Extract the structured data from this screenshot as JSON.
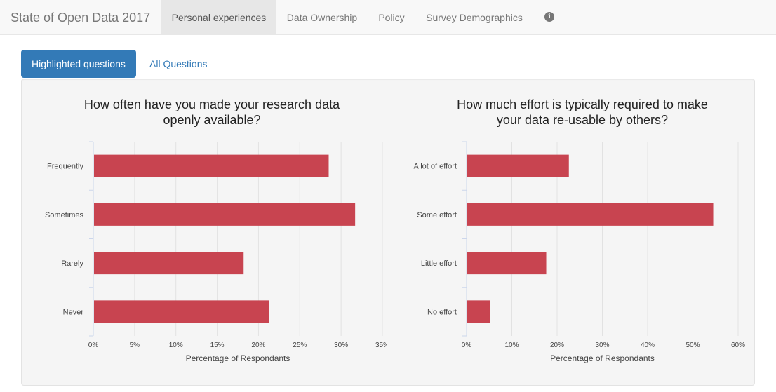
{
  "nav": {
    "brand": "State of Open Data 2017",
    "items": [
      {
        "label": "Personal experiences",
        "active": true
      },
      {
        "label": "Data Ownership",
        "active": false
      },
      {
        "label": "Policy",
        "active": false
      },
      {
        "label": "Survey Demographics",
        "active": false
      }
    ],
    "info_icon": "info-circle-icon"
  },
  "pills": {
    "highlighted": "Highlighted questions",
    "all": "All Questions"
  },
  "colors": {
    "bar": "#c84450",
    "grid": "#e2e2e2",
    "accent": "#337ab7"
  },
  "chart_data": [
    {
      "type": "bar",
      "orientation": "horizontal",
      "title": [
        "How often have you made your research data",
        "openly available?"
      ],
      "categories": [
        "Frequently",
        "Sometimes",
        "Rarely",
        "Never"
      ],
      "values": [
        28.5,
        31.7,
        18.2,
        21.3
      ],
      "xlabel": "Percentage of Respondants",
      "xlim": [
        0,
        35
      ],
      "ticks": [
        0,
        5,
        10,
        15,
        20,
        25,
        30,
        35
      ],
      "tick_suffix": "%",
      "grid": true
    },
    {
      "type": "bar",
      "orientation": "horizontal",
      "title": [
        "How much effort is typically required to make",
        "your data re-usable by others?"
      ],
      "categories": [
        "A lot of effort",
        "Some effort",
        "Little effort",
        "No effort"
      ],
      "values": [
        22.6,
        54.5,
        17.6,
        5.2
      ],
      "xlabel": "Percentage of Respondants",
      "xlim": [
        0,
        60
      ],
      "ticks": [
        0,
        10,
        20,
        30,
        40,
        50,
        60
      ],
      "tick_suffix": "%",
      "grid": true
    }
  ]
}
